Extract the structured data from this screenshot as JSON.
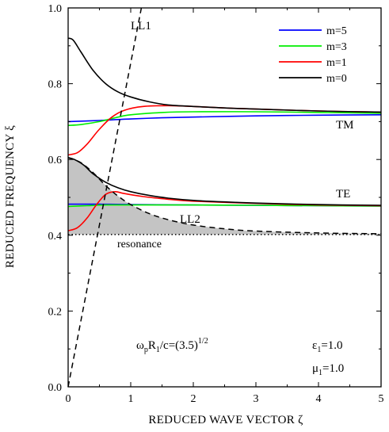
{
  "chart_data": {
    "type": "line",
    "xlabel": "REDUCED WAVE VECTOR ζ",
    "ylabel": "REDUCED FREQUENCY ξ",
    "xlim": [
      0,
      5
    ],
    "ylim": [
      0.0,
      1.0
    ],
    "x_ticks": [
      "0",
      "1",
      "2",
      "3",
      "4",
      "5"
    ],
    "y_ticks": [
      "0.0",
      "0.2",
      "0.4",
      "0.6",
      "0.8",
      "1.0"
    ],
    "legend_position": "top-right",
    "series": [
      {
        "name": "m=5",
        "color": "#0000ff",
        "curves": [
          {
            "x": [
              0,
              0.5,
              1,
              1.5,
              2,
              3,
              4,
              5
            ],
            "y": [
              0.7,
              0.703,
              0.707,
              0.71,
              0.712,
              0.715,
              0.717,
              0.718
            ]
          },
          {
            "x": [
              0,
              0.5,
              1,
              2,
              3,
              4,
              5
            ],
            "y": [
              0.482,
              0.482,
              0.481,
              0.48,
              0.479,
              0.478,
              0.477
            ]
          }
        ]
      },
      {
        "name": "m=3",
        "color": "#00ee00",
        "curves": [
          {
            "x": [
              0,
              0.2,
              0.5,
              0.8,
              1.0,
              1.5,
              2,
              3,
              4,
              5
            ],
            "y": [
              0.69,
              0.692,
              0.7,
              0.712,
              0.718,
              0.724,
              0.726,
              0.726,
              0.724,
              0.722
            ]
          },
          {
            "x": [
              0,
              0.3,
              0.6,
              1.0,
              2,
              3,
              4,
              5
            ],
            "y": [
              0.476,
              0.478,
              0.48,
              0.48,
              0.48,
              0.479,
              0.478,
              0.477
            ]
          }
        ]
      },
      {
        "name": "m=1",
        "color": "#ff0000",
        "curves": [
          {
            "x": [
              0,
              0.15,
              0.3,
              0.5,
              0.7,
              0.9,
              1.2,
              1.6,
              2.0,
              2.5,
              3,
              4,
              5
            ],
            "y": [
              0.612,
              0.618,
              0.64,
              0.68,
              0.712,
              0.73,
              0.74,
              0.742,
              0.74,
              0.736,
              0.733,
              0.728,
              0.725
            ]
          },
          {
            "x": [
              0,
              0.15,
              0.3,
              0.45,
              0.6,
              0.75,
              0.9,
              1.2,
              1.6,
              2,
              3,
              4,
              5
            ],
            "y": [
              0.412,
              0.42,
              0.445,
              0.48,
              0.508,
              0.515,
              0.51,
              0.502,
              0.495,
              0.49,
              0.484,
              0.48,
              0.478
            ]
          }
        ]
      },
      {
        "name": "m=0",
        "color": "#000000",
        "curves": [
          {
            "x": [
              0,
              0.08,
              0.2,
              0.4,
              0.6,
              0.8,
              1.0,
              1.3,
              1.6,
              2,
              2.5,
              3,
              4,
              5
            ],
            "y": [
              0.92,
              0.915,
              0.885,
              0.835,
              0.8,
              0.778,
              0.765,
              0.752,
              0.744,
              0.74,
              0.736,
              0.733,
              0.728,
              0.725
            ]
          },
          {
            "x": [
              0,
              0.1,
              0.25,
              0.4,
              0.6,
              0.8,
              1.0,
              1.3,
              1.6,
              2,
              2.5,
              3,
              4,
              5
            ],
            "y": [
              0.605,
              0.6,
              0.585,
              0.562,
              0.54,
              0.525,
              0.515,
              0.505,
              0.498,
              0.492,
              0.488,
              0.485,
              0.481,
              0.479
            ]
          }
        ]
      }
    ],
    "light_lines": [
      {
        "name": "LL1",
        "style": "dashed",
        "x": [
          0,
          1.17
        ],
        "y": [
          0.0,
          1.0
        ]
      },
      {
        "name": "LL2",
        "style": "dashed",
        "x": [
          0,
          0.2,
          0.4,
          0.6,
          0.8,
          1.0,
          1.3,
          1.6,
          2.0,
          2.5,
          3,
          4,
          5
        ],
        "y": [
          0.605,
          0.592,
          0.565,
          0.531,
          0.503,
          0.481,
          0.457,
          0.441,
          0.427,
          0.417,
          0.411,
          0.406,
          0.404
        ]
      }
    ],
    "resonance": {
      "label": "resonance",
      "y": 0.402,
      "style": "dotted"
    },
    "shaded_region": "between resonance line and LL2",
    "annotations": {
      "ll1": "LL1",
      "ll2": "LL2",
      "tm": "TM",
      "te": "TE",
      "resonance": "resonance",
      "formula_main": "ω",
      "formula_sub_p": "p",
      "formula_R": "R",
      "formula_sub_1": "1",
      "formula_rest": "/c=(3.5)",
      "formula_exp": "1/2",
      "eps_sym": "ε",
      "eps_sub": "1",
      "eps_val": "=1.0",
      "mu_sym": "μ",
      "mu_sub": "1",
      "mu_val": "=1.0"
    }
  }
}
